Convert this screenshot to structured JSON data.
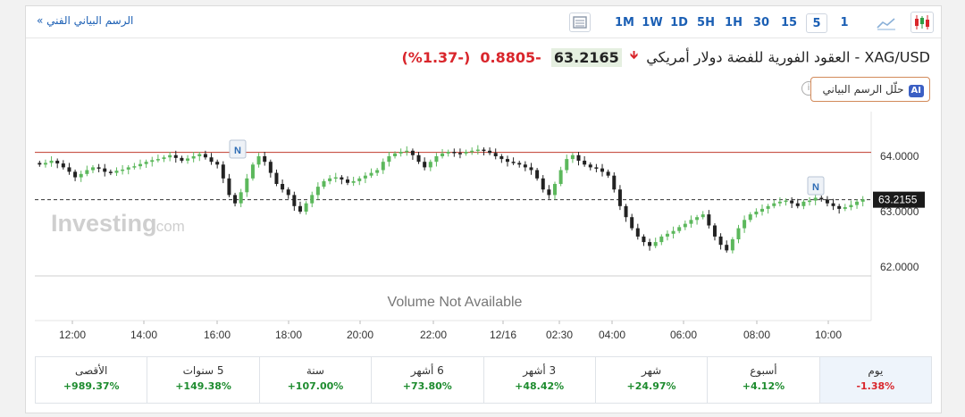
{
  "toolbar": {
    "full_chart_link": "الرسم البياني الفني  »",
    "timeframes": [
      "1M",
      "1W",
      "1D",
      "5H",
      "1H",
      "30",
      "15",
      "5",
      "1"
    ],
    "active_timeframe": "5"
  },
  "instrument": {
    "title": "XAG/USD - العقود الفورية للفضة دولار أمريكي",
    "price": "63.2165",
    "change": "-0.8805",
    "change_pct": "(-1.37%)",
    "direction_icon": "arrow-down-icon"
  },
  "ai_button": {
    "badge": "AI",
    "label": "حلّل الرسم البياني"
  },
  "chart": {
    "watermark": "Investing",
    "watermark_suffix": ".com",
    "volume_text": "Volume Not Available",
    "y_labels": [
      "64.0000",
      "63.0000",
      "62.0000"
    ],
    "current_price_label": "63.2155",
    "x_labels": [
      "12:00",
      "14:00",
      "16:00",
      "18:00",
      "20:00",
      "22:00",
      "12/16",
      "02:30",
      "04:00",
      "06:00",
      "08:00",
      "10:00"
    ],
    "news_markers": [
      "N",
      "N"
    ],
    "colors": {
      "up": "#5cb85c",
      "down": "#222222",
      "resistance": "#c0392b"
    }
  },
  "chart_data": {
    "type": "candlestick",
    "ylim": [
      61.8,
      64.6
    ],
    "resistance_level": 64.07,
    "current_level": 63.2155,
    "close_series": [
      63.85,
      63.88,
      63.92,
      63.87,
      63.8,
      63.72,
      63.62,
      63.68,
      63.75,
      63.8,
      63.78,
      63.72,
      63.7,
      63.74,
      63.76,
      63.8,
      63.82,
      63.86,
      63.9,
      63.93,
      63.95,
      63.98,
      64.02,
      63.97,
      63.92,
      63.96,
      64.0,
      64.04,
      63.98,
      63.9,
      63.85,
      63.6,
      63.3,
      63.15,
      63.35,
      63.6,
      63.85,
      64.0,
      63.9,
      63.7,
      63.5,
      63.4,
      63.3,
      63.1,
      63.0,
      63.15,
      63.3,
      63.45,
      63.55,
      63.6,
      63.62,
      63.58,
      63.52,
      63.55,
      63.6,
      63.65,
      63.7,
      63.75,
      63.9,
      64.0,
      64.05,
      64.08,
      64.1,
      64.02,
      63.9,
      63.8,
      63.9,
      64.0,
      64.05,
      64.08,
      64.06,
      64.05,
      64.08,
      64.1,
      64.12,
      64.1,
      64.06,
      64.0,
      63.95,
      63.9,
      63.88,
      63.85,
      63.8,
      63.75,
      63.6,
      63.4,
      63.3,
      63.5,
      63.75,
      63.95,
      64.02,
      63.92,
      63.85,
      63.8,
      63.78,
      63.72,
      63.65,
      63.4,
      63.1,
      62.9,
      62.7,
      62.55,
      62.45,
      62.38,
      62.45,
      62.55,
      62.6,
      62.65,
      62.72,
      62.78,
      62.85,
      62.9,
      62.95,
      62.75,
      62.55,
      62.4,
      62.3,
      62.5,
      62.7,
      62.85,
      62.95,
      63.0,
      63.05,
      63.1,
      63.15,
      63.18,
      63.2,
      63.15,
      63.1,
      63.18,
      63.2,
      63.25,
      63.22,
      63.15,
      63.1,
      63.05,
      63.08,
      63.12,
      63.18,
      63.22
    ]
  },
  "stats": [
    {
      "label": "يوم",
      "value": "-1.38%",
      "dir": "down"
    },
    {
      "label": "أسبوع",
      "value": "+4.12%",
      "dir": "up"
    },
    {
      "label": "شهر",
      "value": "+24.97%",
      "dir": "up"
    },
    {
      "label": "3 أشهر",
      "value": "+48.42%",
      "dir": "up"
    },
    {
      "label": "6 أشهر",
      "value": "+73.80%",
      "dir": "up"
    },
    {
      "label": "سنة",
      "value": "+107.00%",
      "dir": "up"
    },
    {
      "label": "5 سنوات",
      "value": "+149.38%",
      "dir": "up"
    },
    {
      "label": "الأقصى",
      "value": "+989.37%",
      "dir": "up"
    }
  ]
}
